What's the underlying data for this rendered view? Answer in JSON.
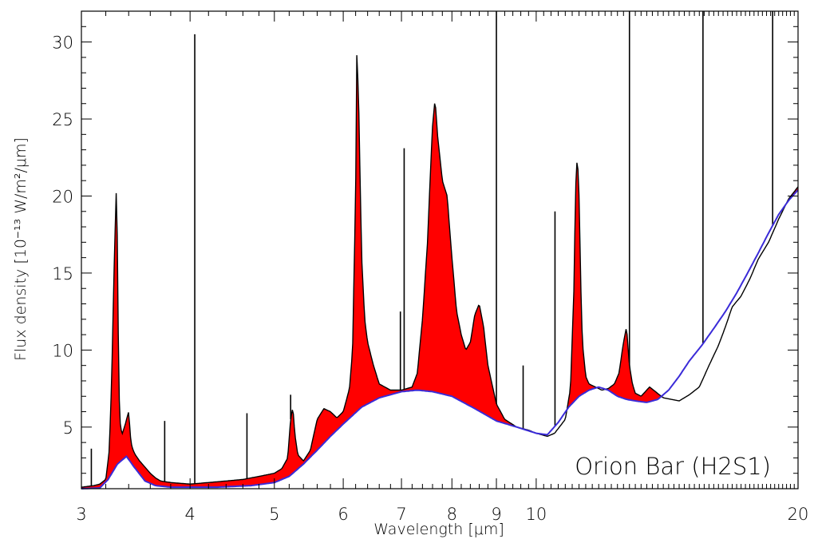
{
  "chart_data": {
    "type": "line",
    "title": "",
    "annotation": "Orion Bar (H2S1)",
    "xlabel": "Wavelength [μm]",
    "ylabel": "Flux density [10⁻¹³ W/m²/μm]",
    "x_scale": "log",
    "xlim": [
      3,
      20
    ],
    "ylim": [
      1,
      32
    ],
    "x_ticks": [
      3,
      4,
      5,
      6,
      7,
      8,
      9,
      10,
      20
    ],
    "y_ticks": [
      5,
      10,
      15,
      20,
      25,
      30
    ],
    "grid": false,
    "legend": "none",
    "colors": {
      "spectrum": "#000000",
      "continuum": "#3a2bd8",
      "fill": "#ff0000"
    },
    "series": [
      {
        "role": "spectrum",
        "x": [
          3.0,
          3.1,
          3.15,
          3.2,
          3.23,
          3.25,
          3.27,
          3.29,
          3.3,
          3.31,
          3.32,
          3.34,
          3.37,
          3.4,
          3.42,
          3.44,
          3.46,
          3.5,
          3.55,
          3.6,
          3.65,
          3.7,
          3.8,
          3.9,
          4.0,
          4.2,
          4.4,
          4.6,
          4.8,
          5.0,
          5.1,
          5.18,
          5.22,
          5.25,
          5.28,
          5.32,
          5.4,
          5.5,
          5.6,
          5.7,
          5.8,
          5.9,
          6.0,
          6.1,
          6.15,
          6.2,
          6.22,
          6.25,
          6.3,
          6.35,
          6.4,
          6.5,
          6.6,
          6.8,
          7.0,
          7.2,
          7.3,
          7.4,
          7.5,
          7.55,
          7.6,
          7.65,
          7.7,
          7.8,
          7.9,
          8.0,
          8.1,
          8.2,
          8.3,
          8.4,
          8.5,
          8.6,
          8.7,
          8.8,
          9.0,
          9.2,
          9.5,
          9.8,
          10.0,
          10.3,
          10.5,
          10.8,
          10.95,
          11.05,
          11.1,
          11.15,
          11.2,
          11.25,
          11.3,
          11.4,
          11.5,
          11.7,
          11.9,
          12.1,
          12.3,
          12.45,
          12.6,
          12.7,
          12.8,
          12.9,
          13.0,
          13.2,
          13.5,
          14.0,
          14.3,
          14.6,
          15.0,
          15.4,
          15.8,
          16.2,
          16.5,
          16.8,
          17.2,
          17.6,
          18.0,
          18.5,
          19.0,
          19.5,
          20.0
        ],
        "y": [
          1.1,
          1.2,
          1.3,
          1.6,
          3.5,
          8.0,
          15.0,
          20.3,
          17.0,
          9.0,
          5.5,
          4.5,
          5.2,
          6.0,
          4.0,
          3.5,
          3.2,
          2.8,
          2.4,
          2.0,
          1.7,
          1.5,
          1.4,
          1.35,
          1.3,
          1.4,
          1.5,
          1.6,
          1.8,
          2.0,
          2.3,
          3.0,
          5.5,
          6.3,
          4.5,
          3.2,
          2.8,
          3.5,
          5.5,
          6.2,
          6.0,
          5.6,
          6.0,
          7.5,
          10.0,
          20.0,
          29.5,
          26.0,
          16.0,
          12.0,
          10.5,
          9.0,
          7.8,
          7.4,
          7.4,
          7.6,
          8.5,
          12.0,
          17.0,
          21.0,
          24.5,
          26.3,
          24.0,
          21.0,
          20.0,
          16.0,
          12.5,
          11.0,
          10.0,
          10.5,
          12.3,
          13.0,
          11.5,
          9.0,
          6.5,
          5.5,
          5.0,
          4.8,
          4.6,
          4.4,
          4.6,
          5.5,
          7.5,
          14.0,
          20.5,
          22.7,
          20.0,
          14.5,
          10.5,
          8.3,
          7.8,
          7.6,
          7.4,
          7.5,
          7.8,
          8.5,
          10.5,
          11.5,
          9.0,
          7.8,
          7.2,
          7.0,
          7.6,
          6.9,
          6.8,
          6.7,
          7.1,
          7.6,
          9.0,
          10.3,
          11.5,
          12.8,
          13.5,
          14.6,
          15.9,
          17.0,
          18.5,
          19.8,
          20.6
        ]
      },
      {
        "role": "continuum",
        "x": [
          3.0,
          3.15,
          3.22,
          3.3,
          3.38,
          3.45,
          3.55,
          3.65,
          3.8,
          4.0,
          4.3,
          4.7,
          5.0,
          5.2,
          5.4,
          5.6,
          5.8,
          6.0,
          6.3,
          6.6,
          7.0,
          7.3,
          7.6,
          8.0,
          8.5,
          9.0,
          9.5,
          10.0,
          10.3,
          10.6,
          10.9,
          11.2,
          11.5,
          11.8,
          12.1,
          12.4,
          12.7,
          13.0,
          13.4,
          13.8,
          14.2,
          14.6,
          15.0,
          15.5,
          16.0,
          16.5,
          17.0,
          17.5,
          18.0,
          18.5,
          19.0,
          19.5,
          20.0
        ],
        "y": [
          1.0,
          1.05,
          1.6,
          2.6,
          3.1,
          2.4,
          1.5,
          1.2,
          1.1,
          1.1,
          1.1,
          1.2,
          1.4,
          1.8,
          2.6,
          3.5,
          4.4,
          5.2,
          6.3,
          6.9,
          7.3,
          7.4,
          7.3,
          7.0,
          6.2,
          5.4,
          5.0,
          4.6,
          4.5,
          5.3,
          6.3,
          7.0,
          7.4,
          7.6,
          7.4,
          7.0,
          6.8,
          6.7,
          6.6,
          6.8,
          7.4,
          8.3,
          9.3,
          10.3,
          11.4,
          12.5,
          13.7,
          15.0,
          16.3,
          17.6,
          18.8,
          19.7,
          20.4
        ]
      },
      {
        "role": "atomic-lines",
        "x": [
          3.08,
          3.74,
          4.05,
          4.65,
          5.22,
          6.98,
          7.05,
          9.0,
          9.66,
          10.51,
          12.8,
          15.55,
          18.7
        ],
        "y": [
          3.6,
          5.4,
          30.5,
          5.9,
          7.1,
          12.5,
          23.1,
          32.0,
          9.0,
          19.0,
          32.0,
          32.0,
          32.0
        ]
      }
    ]
  }
}
